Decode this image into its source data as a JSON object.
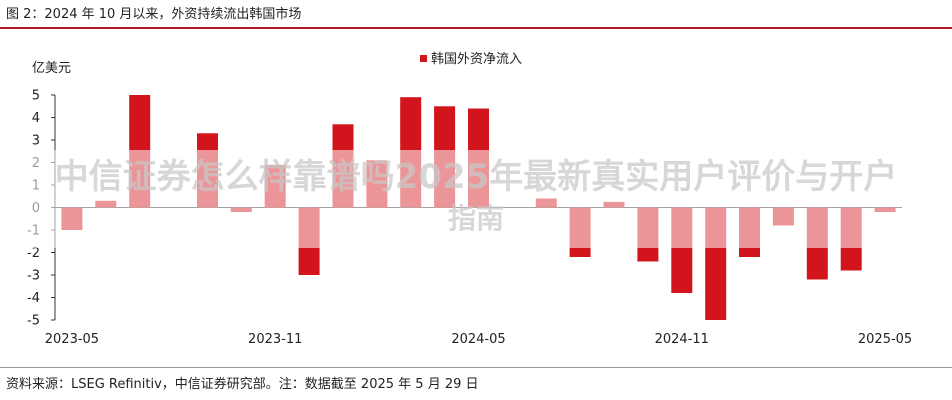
{
  "figure": {
    "title": "图 2：2024 年 10 月以来，外资持续流出韩国市场",
    "source": "资料来源：LSEG Refinitiv，中信证券研究部。注：数据截至 2025 年 5 月 29 日"
  },
  "watermark": {
    "line1": "中信证券怎么样靠谱吗2025年最新真实用户评价与开户",
    "line2": "指南"
  },
  "colors": {
    "bar": "#d2141c",
    "axis": "#333333",
    "text": "#222222"
  },
  "chart_data": {
    "type": "bar",
    "title": "图 2：2024 年 10 月以来，外资持续流出韩国市场",
    "ylabel": "亿美元",
    "xlabel": "",
    "ylim": [
      -5,
      5
    ],
    "yticks": [
      5,
      4,
      3,
      2,
      1,
      0,
      -1,
      -2,
      -3,
      -4,
      -5
    ],
    "legend": "top-center",
    "grid": false,
    "series": [
      {
        "name": "韩国外资净流入",
        "values": [
          -1.0,
          0.3,
          5.0,
          0.0,
          3.3,
          -0.2,
          1.9,
          -3.0,
          3.7,
          2.1,
          4.9,
          4.5,
          4.4,
          0.0,
          0.4,
          -2.2,
          0.25,
          -2.4,
          -3.8,
          -5.0,
          -2.2,
          -0.8,
          -3.2,
          -2.8,
          -0.2
        ]
      }
    ],
    "categories": [
      "2023-05",
      "2023-06",
      "2023-07",
      "2023-08",
      "2023-09",
      "2023-10",
      "2023-11",
      "2023-12",
      "2024-01",
      "2024-02",
      "2024-03",
      "2024-04",
      "2024-05",
      "2024-06",
      "2024-07",
      "2024-08",
      "2024-09",
      "2024-10",
      "2024-11",
      "2024-12",
      "2025-01",
      "2025-02",
      "2025-03",
      "2025-04",
      "2025-05"
    ],
    "xtick_labels": [
      "2023-05",
      "2023-11",
      "2024-05",
      "2024-11",
      "2025-05"
    ]
  }
}
